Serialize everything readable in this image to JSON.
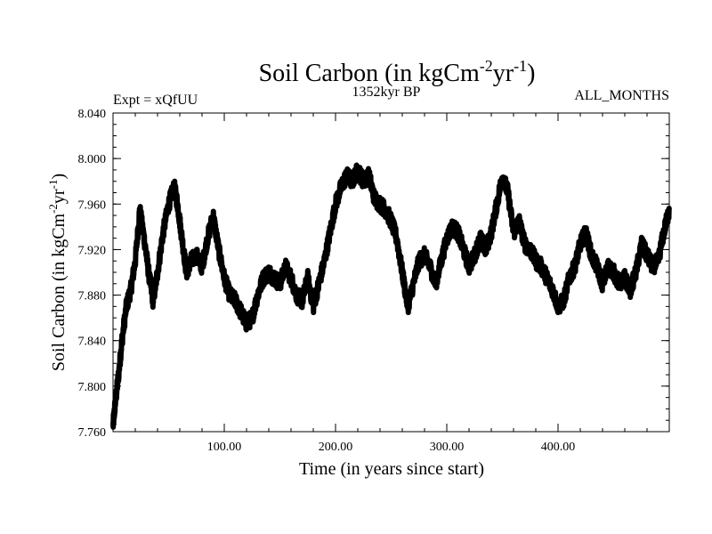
{
  "chart_data": {
    "type": "line",
    "title": {
      "main": "Soil Carbon (in kgCm",
      "sup1": "-2",
      "mid": "yr",
      "sup2": "-1",
      "end": ")"
    },
    "subtitle_left": "Expt = xQfUU",
    "subtitle_center": "1352kyr BP",
    "subtitle_right": "ALL_MONTHS",
    "xlabel": "Time (in years since start)",
    "ylabel": {
      "main": "Soil Carbon (in kgCm",
      "sup1": "-2",
      "mid": "yr",
      "sup2": "-1",
      "end": ")"
    },
    "xlim": [
      0,
      500
    ],
    "ylim": [
      7.76,
      8.04
    ],
    "x_ticks": [
      100,
      200,
      300,
      400
    ],
    "x_tick_labels": [
      "100.00",
      "200.00",
      "300.00",
      "400.00"
    ],
    "y_ticks": [
      7.76,
      7.8,
      7.84,
      7.88,
      7.92,
      7.96,
      8.0,
      8.04
    ],
    "y_tick_labels": [
      "7.760",
      "7.800",
      "7.840",
      "7.880",
      "7.920",
      "7.960",
      "8.000",
      "8.040"
    ],
    "series": [
      {
        "name": "Soil Carbon",
        "color": "#000000",
        "x": [
          0,
          2,
          5,
          8,
          12,
          16,
          20,
          24,
          28,
          32,
          36,
          40,
          45,
          50,
          55,
          58,
          62,
          66,
          70,
          75,
          80,
          85,
          90,
          95,
          100,
          105,
          110,
          115,
          120,
          125,
          130,
          135,
          140,
          145,
          150,
          155,
          160,
          165,
          170,
          175,
          180,
          185,
          190,
          195,
          200,
          205,
          210,
          215,
          220,
          225,
          230,
          235,
          240,
          245,
          250,
          255,
          260,
          265,
          270,
          275,
          280,
          285,
          290,
          295,
          300,
          305,
          310,
          315,
          320,
          325,
          330,
          335,
          340,
          345,
          350,
          355,
          360,
          365,
          370,
          375,
          380,
          385,
          390,
          395,
          400,
          405,
          410,
          415,
          420,
          425,
          430,
          435,
          440,
          445,
          450,
          455,
          460,
          465,
          470,
          475,
          480,
          485,
          490,
          495,
          500
        ],
        "values": [
          7.765,
          7.785,
          7.81,
          7.84,
          7.87,
          7.885,
          7.91,
          7.955,
          7.93,
          7.9,
          7.875,
          7.9,
          7.935,
          7.96,
          7.975,
          7.96,
          7.93,
          7.9,
          7.91,
          7.915,
          7.905,
          7.93,
          7.95,
          7.92,
          7.895,
          7.88,
          7.875,
          7.865,
          7.855,
          7.86,
          7.88,
          7.895,
          7.9,
          7.895,
          7.89,
          7.905,
          7.895,
          7.88,
          7.875,
          7.895,
          7.87,
          7.89,
          7.91,
          7.935,
          7.96,
          7.975,
          7.985,
          7.98,
          7.99,
          7.98,
          7.985,
          7.965,
          7.96,
          7.955,
          7.945,
          7.93,
          7.9,
          7.87,
          7.89,
          7.91,
          7.915,
          7.905,
          7.89,
          7.91,
          7.93,
          7.94,
          7.935,
          7.92,
          7.905,
          7.915,
          7.93,
          7.92,
          7.935,
          7.96,
          7.985,
          7.97,
          7.935,
          7.945,
          7.925,
          7.92,
          7.91,
          7.905,
          7.895,
          7.885,
          7.87,
          7.875,
          7.895,
          7.905,
          7.925,
          7.935,
          7.915,
          7.905,
          7.89,
          7.905,
          7.9,
          7.89,
          7.895,
          7.885,
          7.9,
          7.925,
          7.915,
          7.905,
          7.91,
          7.935,
          7.955
        ]
      }
    ]
  }
}
